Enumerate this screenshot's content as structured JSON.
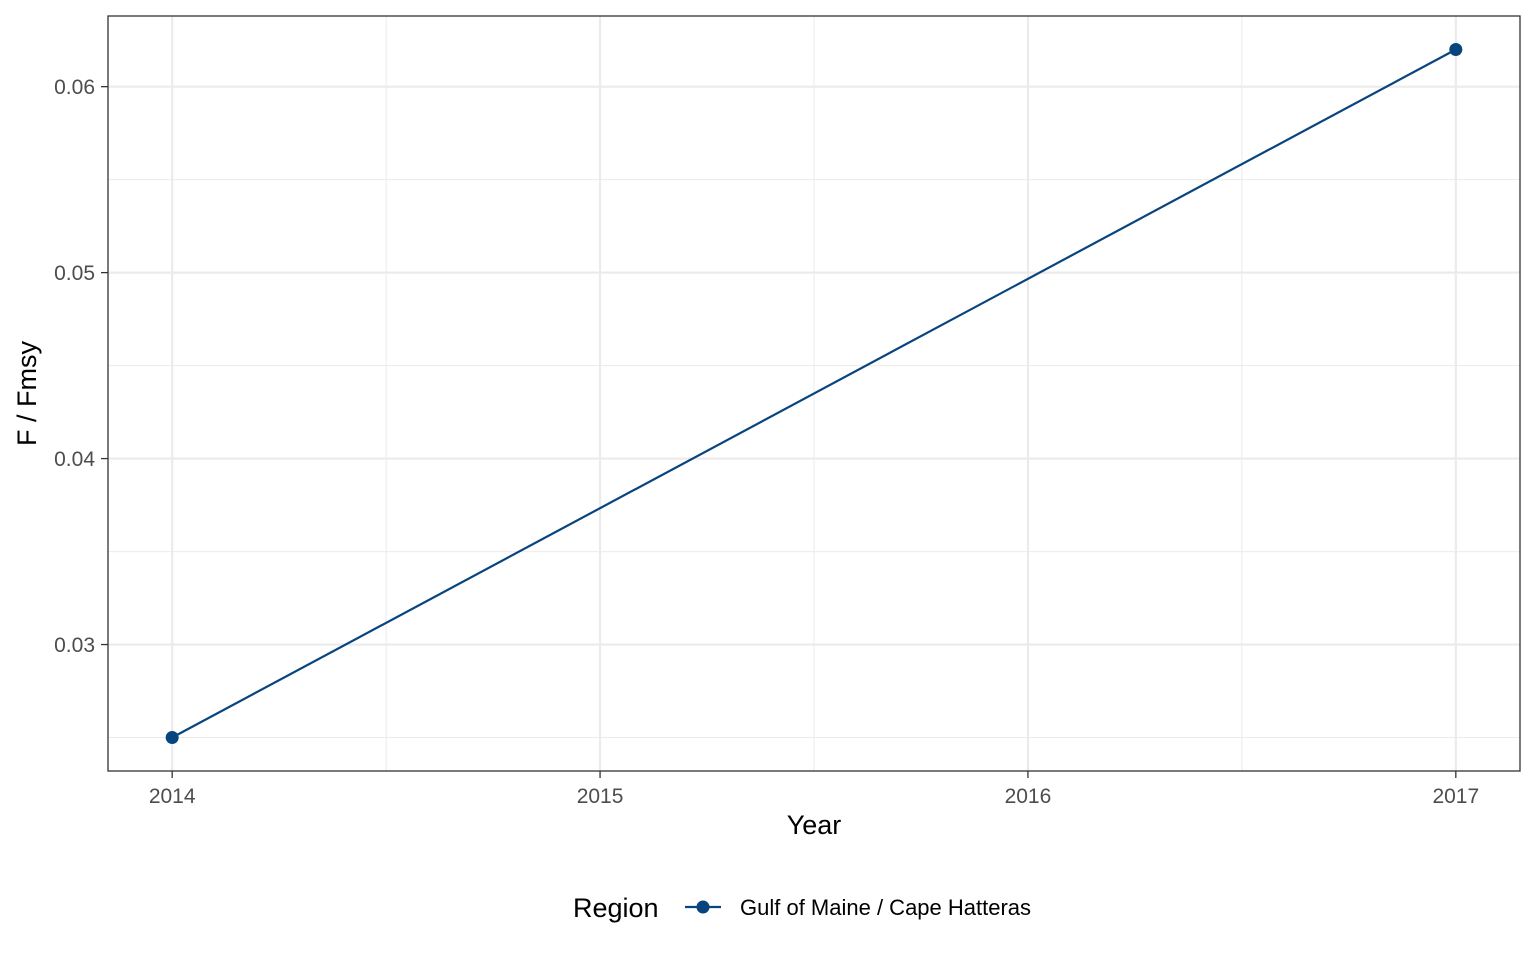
{
  "chart_data": {
    "type": "line",
    "title": "",
    "xlabel": "Year",
    "ylabel": "F / Fmsy",
    "x_ticks": [
      "2014",
      "2015",
      "2016",
      "2017"
    ],
    "y_ticks": [
      "0.03",
      "0.04",
      "0.05",
      "0.06"
    ],
    "xlim": [
      2013.85,
      2017.15
    ],
    "ylim": [
      0.0232,
      0.0638
    ],
    "grid": true,
    "legend": {
      "title": "Region",
      "position": "bottom"
    },
    "series": [
      {
        "name": "Gulf of Maine / Cape Hatteras",
        "color": "#08457E",
        "x": [
          2014,
          2017
        ],
        "y": [
          0.025,
          0.062
        ]
      }
    ]
  }
}
